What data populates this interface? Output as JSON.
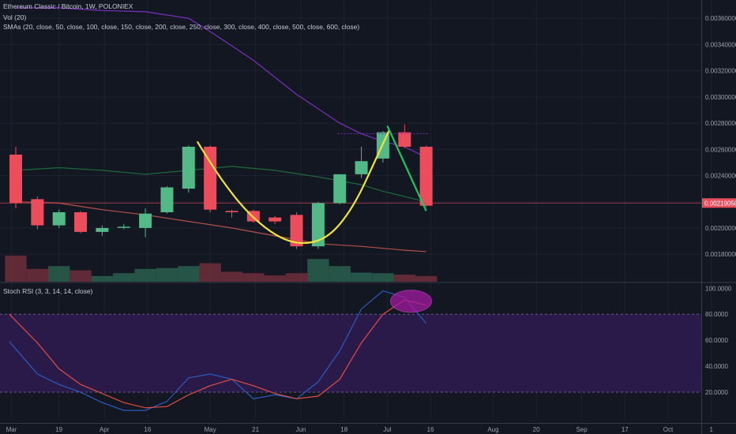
{
  "header": {
    "title": "Ethereum Classic / Bitcoin, 1W, POLONIEX",
    "vol_label": "Vol (20)",
    "sma_label": "SMAs (20, close, 50, close, 100, close, 150, close, 200, close, 250, close, 300, close, 400, close, 500, close, 600, close)",
    "rsi_label": "Stoch RSI (3, 3, 14, 14, close)"
  },
  "colors": {
    "background": "#131722",
    "up": "#53b987",
    "down": "#eb4d5c",
    "rsi_band": "#2a1a4a",
    "sma_purple": "#7b2fbe",
    "sma_green": "#1e6b3a",
    "sma_red": "#b5504a",
    "cup_curve": "#f2e33c",
    "drop_line": "#22c55e",
    "ellipse": "#a31aa3",
    "stoch_k": "#2b5bbd",
    "stoch_d": "#e24d42"
  },
  "chart_data": {
    "type": "candlestick",
    "price_axis": {
      "ticks": [
        "0.00180000",
        "0.00200000",
        "0.00220000",
        "0.00240000",
        "0.00260000",
        "0.00280000",
        "0.00300000",
        "0.00320000",
        "0.00340000",
        "0.00360000"
      ],
      "range": [
        0.00159,
        0.00374
      ],
      "last_price": "0.00219050"
    },
    "rsi_axis": {
      "ticks": [
        "20.0000",
        "40.0000",
        "60.0000",
        "80.0000",
        "100.0000"
      ],
      "range": [
        0,
        102
      ],
      "band": [
        20,
        80
      ]
    },
    "x_axis": {
      "ticks": [
        {
          "label": "Mar",
          "i": -0.2
        },
        {
          "label": "19",
          "i": 2.0
        },
        {
          "label": "Apr",
          "i": 4.1
        },
        {
          "label": "16",
          "i": 6.1
        },
        {
          "label": "May",
          "i": 9.0
        },
        {
          "label": "21",
          "i": 11.1
        },
        {
          "label": "Jun",
          "i": 13.2
        },
        {
          "label": "18",
          "i": 15.2
        },
        {
          "label": "Jul",
          "i": 17.2
        },
        {
          "label": "16",
          "i": 19.2
        },
        {
          "label": "Aug",
          "i": 22.1
        },
        {
          "label": "20",
          "i": 24.1
        },
        {
          "label": "Sep",
          "i": 26.2
        },
        {
          "label": "17",
          "i": 28.2
        },
        {
          "label": "Oct",
          "i": 30.2
        },
        {
          "label": "1",
          "i": 32.2
        }
      ]
    },
    "candles": [
      {
        "o": 0.00256,
        "h": 0.00262,
        "c": 0.00219,
        "l": 0.00215
      },
      {
        "o": 0.00222,
        "h": 0.00224,
        "c": 0.00202,
        "l": 0.00199
      },
      {
        "o": 0.00202,
        "h": 0.00214,
        "c": 0.00212,
        "l": 0.002
      },
      {
        "o": 0.00212,
        "h": 0.00213,
        "c": 0.00197,
        "l": 0.00196
      },
      {
        "o": 0.00197,
        "h": 0.00202,
        "c": 0.002,
        "l": 0.00194
      },
      {
        "o": 0.00201,
        "h": 0.00203,
        "c": 0.00201,
        "l": 0.00199
      },
      {
        "o": 0.002,
        "h": 0.00215,
        "c": 0.00211,
        "l": 0.00193
      },
      {
        "o": 0.00212,
        "h": 0.00232,
        "c": 0.00231,
        "l": 0.00211
      },
      {
        "o": 0.0023,
        "h": 0.00263,
        "c": 0.00262,
        "l": 0.00227
      },
      {
        "o": 0.00262,
        "h": 0.00263,
        "c": 0.00214,
        "l": 0.00212
      },
      {
        "o": 0.00213,
        "h": 0.00214,
        "c": 0.00212,
        "l": 0.00208
      },
      {
        "o": 0.00213,
        "h": 0.00214,
        "c": 0.00205,
        "l": 0.00204
      },
      {
        "o": 0.00208,
        "h": 0.00209,
        "c": 0.00205,
        "l": 0.00203
      },
      {
        "o": 0.0021,
        "h": 0.00212,
        "c": 0.00186,
        "l": 0.00184
      },
      {
        "o": 0.00186,
        "h": 0.0022,
        "c": 0.00219,
        "l": 0.00184
      },
      {
        "o": 0.00219,
        "h": 0.00241,
        "c": 0.00241,
        "l": 0.00218
      },
      {
        "o": 0.00241,
        "h": 0.00262,
        "c": 0.00251,
        "l": 0.00238
      },
      {
        "o": 0.00253,
        "h": 0.00274,
        "c": 0.00273,
        "l": 0.0025
      },
      {
        "o": 0.00273,
        "h": 0.00279,
        "c": 0.00262,
        "l": 0.00261
      },
      {
        "o": 0.00262,
        "h": 0.00263,
        "c": 0.00217,
        "l": 0.00216
      }
    ],
    "volume": [
      0.92,
      0.45,
      0.55,
      0.4,
      0.2,
      0.3,
      0.45,
      0.48,
      0.55,
      0.65,
      0.35,
      0.3,
      0.22,
      0.3,
      0.8,
      0.55,
      0.32,
      0.3,
      0.25,
      0.2
    ],
    "sma_series": [
      {
        "color_key": "sma_purple",
        "x": [
          0,
          2,
          4,
          6,
          8,
          9,
          11,
          13,
          15,
          16,
          17,
          18,
          19
        ],
        "y": [
          0.00368,
          0.00368,
          0.00366,
          0.00365,
          0.0036,
          0.0035,
          0.00328,
          0.00302,
          0.0028,
          0.00272,
          0.00266,
          0.00262,
          0.00254
        ]
      },
      {
        "color_key": "sma_green",
        "x": [
          0,
          2,
          4,
          6,
          8,
          10,
          12,
          14,
          16,
          17,
          18,
          19
        ],
        "y": [
          0.00244,
          0.00246,
          0.00244,
          0.00241,
          0.00244,
          0.00247,
          0.00244,
          0.00239,
          0.00233,
          0.00228,
          0.00224,
          0.0022
        ]
      },
      {
        "color_key": "sma_red",
        "x": [
          0,
          2,
          4,
          6,
          8,
          10,
          12,
          14,
          16,
          18,
          19
        ],
        "y": [
          0.0022,
          0.00219,
          0.00214,
          0.0021,
          0.00205,
          0.002,
          0.00194,
          0.00188,
          0.00186,
          0.00183,
          0.00182
        ]
      }
    ],
    "last_price_line": 0.0021905,
    "cup_curve": {
      "x": [
        8.4,
        9.5,
        10.8,
        12.2,
        13.4,
        14.6,
        15.7,
        16.6,
        17.3
      ],
      "y": [
        0.00266,
        0.00237,
        0.0021,
        0.00192,
        0.00187,
        0.00194,
        0.00218,
        0.0025,
        0.00275
      ]
    },
    "drop_line": {
      "x": [
        17.2,
        19.0
      ],
      "y": [
        0.00278,
        0.00213
      ]
    },
    "resistance_line": {
      "x": [
        14.9,
        19.1
      ],
      "y": [
        0.00272,
        0.00272
      ]
    },
    "stoch_k": {
      "x": [
        -0.3,
        1,
        2,
        3,
        4,
        5,
        6,
        7,
        8,
        9,
        10,
        11,
        12,
        13,
        14,
        15,
        16,
        17,
        18,
        19
      ],
      "y": [
        59,
        34,
        26,
        20,
        12,
        6,
        6,
        13,
        31,
        34,
        30,
        15,
        18,
        15,
        28,
        52,
        84,
        98,
        93,
        73
      ]
    },
    "stoch_d": {
      "x": [
        -0.3,
        1,
        2,
        3,
        4,
        5,
        6,
        7,
        8,
        9,
        10,
        11,
        12,
        13,
        14,
        15,
        16,
        17,
        18,
        19
      ],
      "y": [
        80,
        58,
        38,
        26,
        19,
        12,
        8,
        9,
        18,
        25,
        30,
        25,
        19,
        15,
        17,
        30,
        58,
        80,
        91,
        87
      ]
    },
    "ellipse": {
      "cx": 18.3,
      "cy": 90,
      "rx_units": 0.95,
      "ry_units": 8.5
    }
  }
}
